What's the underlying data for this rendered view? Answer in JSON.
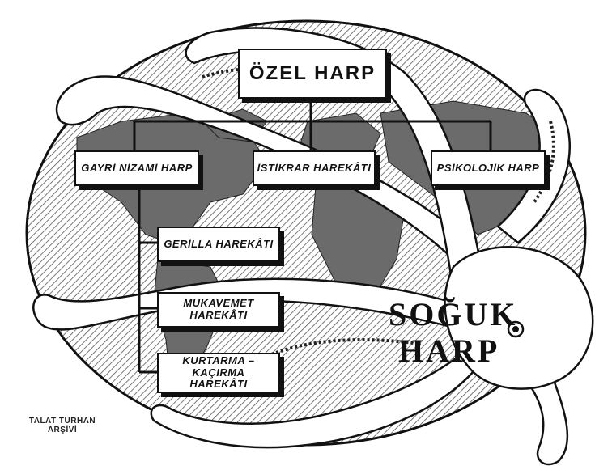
{
  "diagram": {
    "root": "ÖZEL HARP",
    "level1": [
      "GAYRİ NİZAMİ HARP",
      "İSTİKRAR HAREKÂTI",
      "PSİKOLOJİK HARP"
    ],
    "level2": [
      "GERİLLA HAREKÂTI",
      "MUKAVEMET HAREKÂTI",
      "KURTARMA – KAÇIRMA HAREKÂTI"
    ]
  },
  "illustration": {
    "title_line1": "SOĞUK",
    "title_line2": "HARP"
  },
  "credit": {
    "line1": "TALAT TURHAN",
    "line2": "ARŞİVİ"
  },
  "colors": {
    "ink": "#111111",
    "paper": "#ffffff",
    "land": "#6b6b6b"
  },
  "icons": [
    "world-map-icon",
    "octopus-icon"
  ]
}
